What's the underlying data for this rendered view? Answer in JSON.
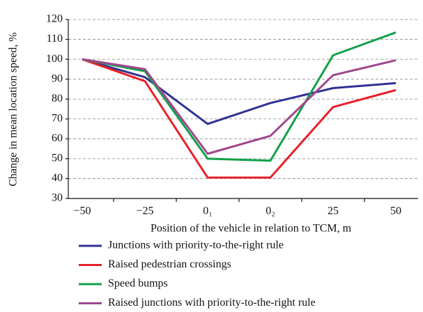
{
  "chart_data": {
    "type": "line",
    "x_label": "Position of the vehicle in relation to TCM, m",
    "y_label": "Change in mean location speed, %",
    "categories": [
      "−50",
      "−25",
      "0₁",
      "0₂",
      "25",
      "50"
    ],
    "series": [
      {
        "name": "Junctions with priority-to-the-right rule",
        "color": "#2e3192",
        "values": [
          100,
          91,
          67.5,
          78,
          85.5,
          88
        ]
      },
      {
        "name": "Raised pedestrian crossings",
        "color": "#e8202a",
        "values": [
          100,
          89,
          40.5,
          40.5,
          76,
          84.5
        ]
      },
      {
        "name": "Speed bumps",
        "color": "#12a04a",
        "values": [
          100,
          94,
          50,
          49,
          102,
          113.5
        ]
      },
      {
        "name": "Raised junctions with priority-to-the-right rule",
        "color": "#a0468e",
        "values": [
          100,
          95,
          52.5,
          61.5,
          92,
          99.5
        ]
      }
    ],
    "ylim": [
      30,
      120
    ],
    "yticks": [
      30,
      40,
      50,
      60,
      70,
      80,
      90,
      100,
      110,
      120
    ],
    "grid": true
  }
}
